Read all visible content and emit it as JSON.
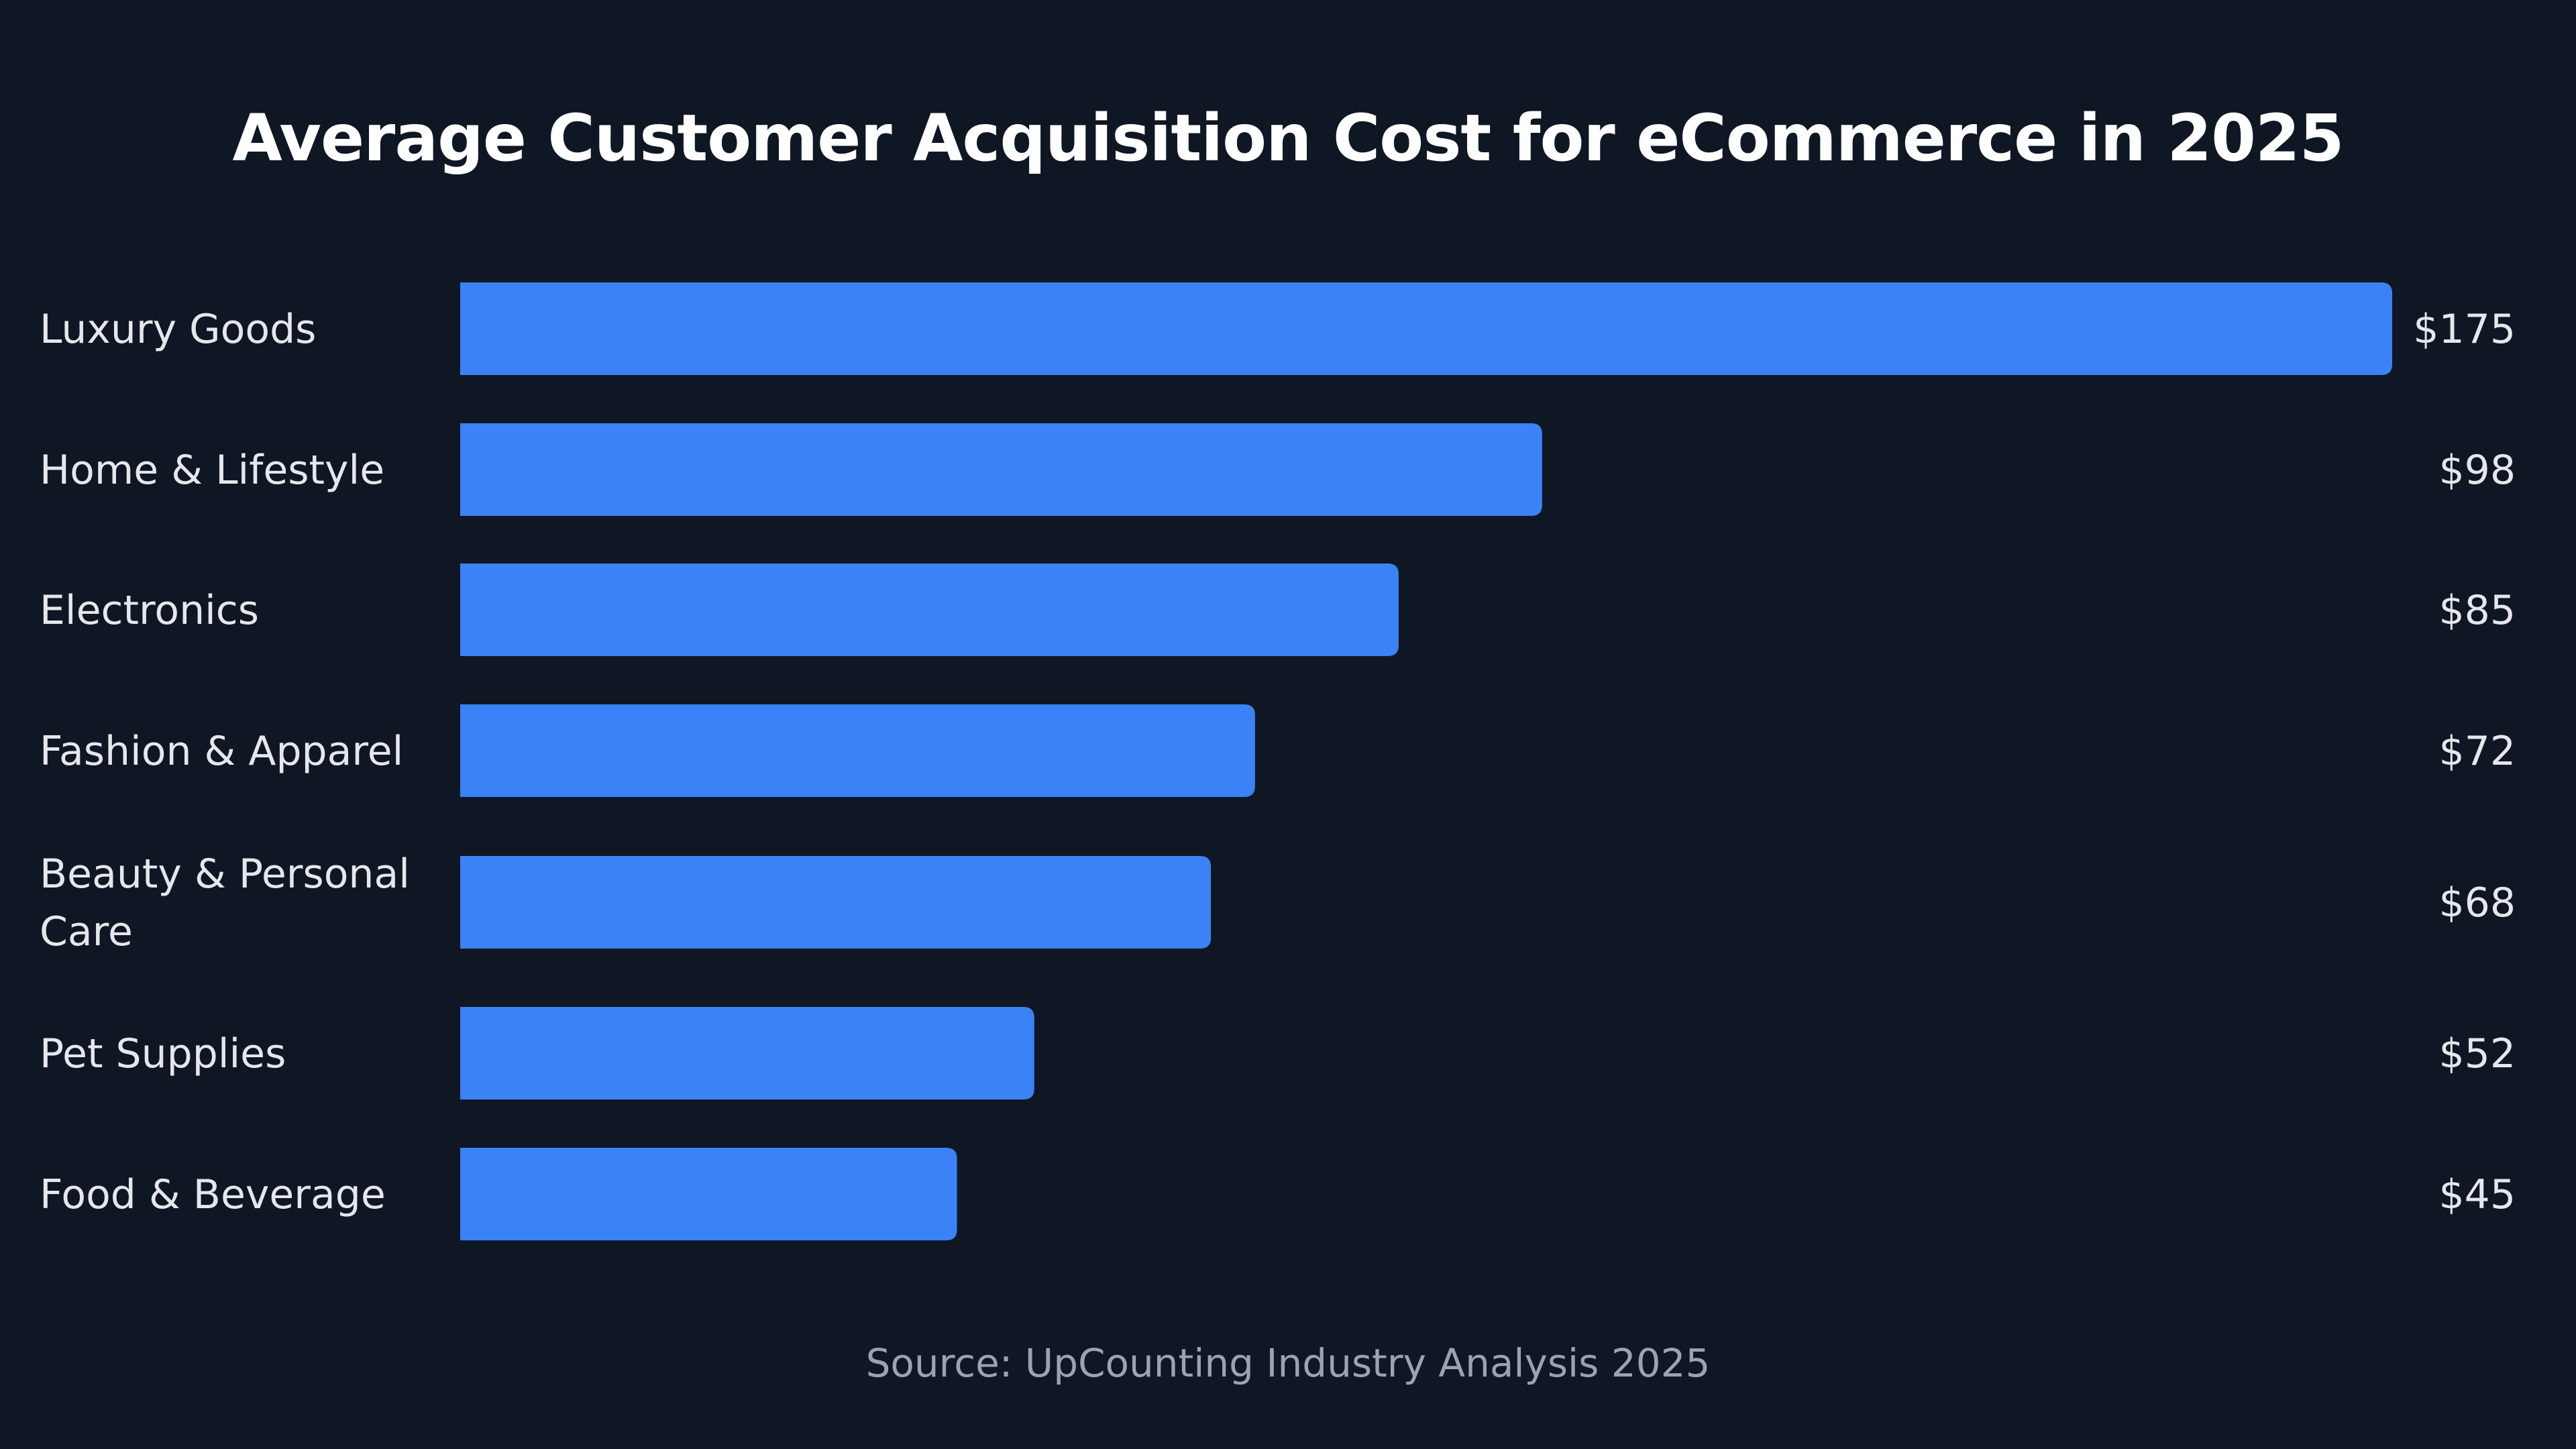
{
  "chart_data": {
    "type": "bar",
    "orientation": "horizontal",
    "title": "Average Customer Acquisition Cost for eCommerce in 2025",
    "categories": [
      [
        "Luxury Goods"
      ],
      [
        "Home & Lifestyle"
      ],
      [
        "Electronics"
      ],
      [
        "Fashion & Apparel"
      ],
      [
        "Beauty & Personal",
        "Care"
      ],
      [
        "Pet Supplies"
      ],
      [
        "Food & Beverage"
      ]
    ],
    "values": [
      175,
      98,
      85,
      72,
      68,
      52,
      45
    ],
    "value_labels": [
      "$175",
      "$98",
      "$85",
      "$72",
      "$68",
      "$52",
      "$45"
    ],
    "xlim": [
      0,
      175
    ],
    "grid": false,
    "legend": "none",
    "bar_color": "#3b82f6",
    "source": "Source: UpCounting Industry Analysis 2025"
  }
}
